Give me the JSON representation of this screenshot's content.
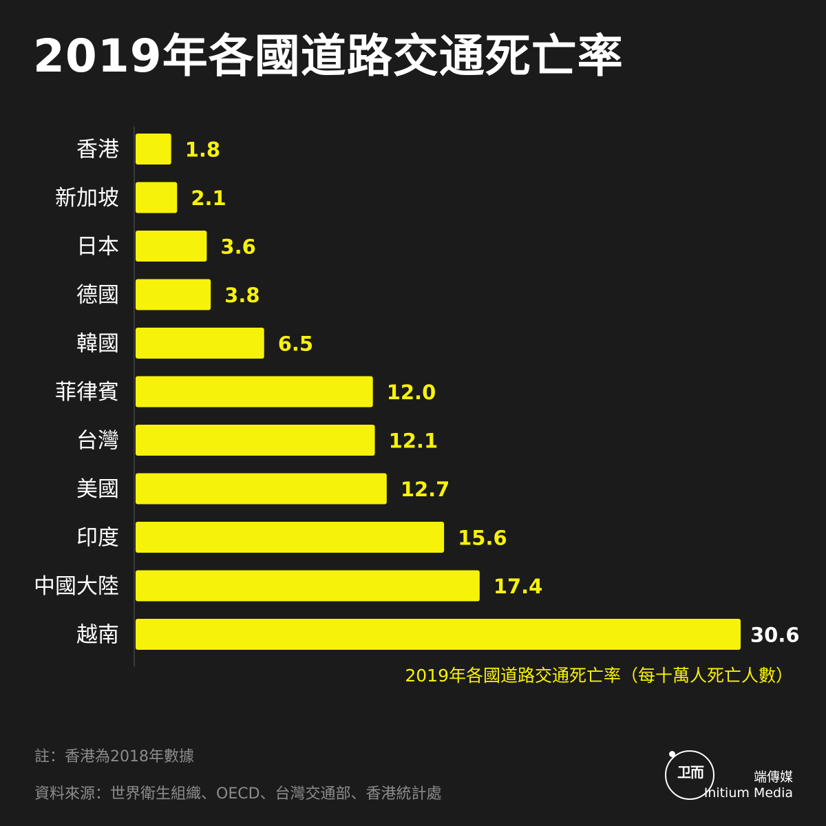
{
  "header": {
    "title": "2019年各國道路交通死亡率"
  },
  "chart_data": {
    "type": "bar",
    "orientation": "horizontal",
    "title": "2019年各國道路交通死亡率",
    "xlabel": "2019年各國道路交通死亡率（每十萬人死亡人數）",
    "categories": [
      "香港",
      "新加坡",
      "日本",
      "德國",
      "韓國",
      "菲律賓",
      "台灣",
      "美國",
      "印度",
      "中國大陸",
      "越南"
    ],
    "values": [
      1.8,
      2.1,
      3.6,
      3.8,
      6.5,
      12.0,
      12.1,
      12.7,
      15.6,
      17.4,
      30.6
    ],
    "value_labels": [
      "1.8",
      "2.1",
      "3.6",
      "3.8",
      "6.5",
      "12.0",
      "12.1",
      "12.7",
      "15.6",
      "17.4",
      "30.6"
    ],
    "xlim": [
      0,
      30.6
    ],
    "grid": false,
    "bar_color": "#f7f20a",
    "label_color": "#f7f20a",
    "last_label_color": "#ffffff"
  },
  "footer": {
    "note": "註：香港為2018年數據",
    "source": "資料來源：世界衛生組織、OECD、台灣交通部、香港統計處",
    "brand_zh": "端傳媒",
    "brand_en": "Initium Media",
    "logo_glyph": "卫而"
  }
}
